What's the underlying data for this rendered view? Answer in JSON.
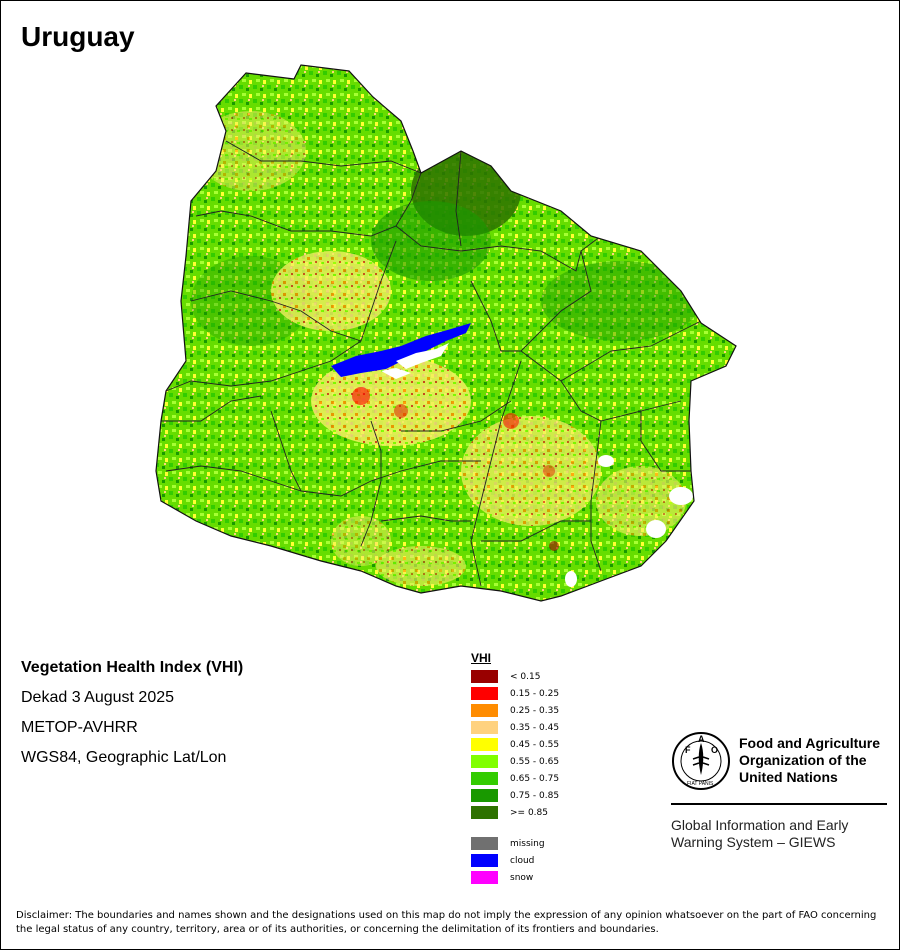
{
  "title": "Uruguay",
  "meta": {
    "index_name": "Vegetation Health Index (VHI)",
    "period": "Dekad 3 August 2025",
    "sensor": "METOP-AVHRR",
    "projection": "WGS84, Geographic Lat/Lon"
  },
  "legend": {
    "title": "VHI",
    "classes": [
      {
        "label": "< 0.15",
        "color": "#990000"
      },
      {
        "label": "0.15 - 0.25",
        "color": "#ff0000"
      },
      {
        "label": "0.25 - 0.35",
        "color": "#ff8c00"
      },
      {
        "label": "0.35 - 0.45",
        "color": "#ffd27f"
      },
      {
        "label": "0.45 - 0.55",
        "color": "#ffff00"
      },
      {
        "label": "0.55 - 0.65",
        "color": "#80ff00"
      },
      {
        "label": "0.65 - 0.75",
        "color": "#33cc00"
      },
      {
        "label": "0.75 - 0.85",
        "color": "#199900"
      },
      {
        "label": ">= 0.85",
        "color": "#2e7200"
      }
    ],
    "special": [
      {
        "label": "missing",
        "color": "#707070"
      },
      {
        "label": "cloud",
        "color": "#0000ff"
      },
      {
        "label": "snow",
        "color": "#ff00ff"
      }
    ]
  },
  "organization": {
    "name_lines": [
      "Food and Agriculture",
      "Organization of the",
      "United Nations"
    ],
    "emblem_text": [
      "F",
      "A",
      "O",
      "FIAT PANIS"
    ],
    "system_lines": [
      "Global Information and Early",
      "Warning System – GIEWS"
    ]
  },
  "disclaimer": "Disclaimer: The boundaries and names shown and the designations used on this map do not imply the expression of any opinion whatsoever on the part of FAO concerning the legal status of any country, territory, area or of its authorities, or concerning the delimitation of its frontiers and boundaries."
}
